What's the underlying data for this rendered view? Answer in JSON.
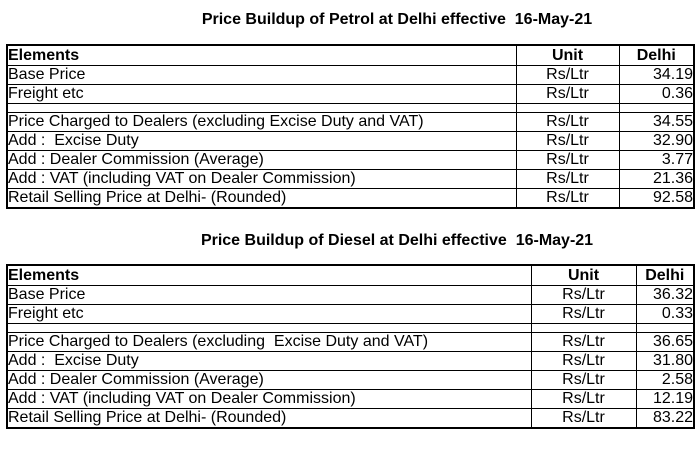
{
  "page": {
    "background_color": "#ffffff",
    "text_color": "#000000",
    "border_color": "#000000"
  },
  "tables": [
    {
      "title": "Price Buildup of Petrol at Delhi effective  16-May-21",
      "columns": [
        "Elements",
        "Unit",
        "Delhi"
      ],
      "rows": [
        {
          "element": "Base Price",
          "unit": "Rs/Ltr",
          "value": "34.19"
        },
        {
          "element": "Freight etc",
          "unit": "Rs/Ltr",
          "value": "0.36"
        },
        {
          "element": "Price Charged to Dealers (excluding Excise Duty and VAT)",
          "unit": "Rs/Ltr",
          "value": "34.55"
        },
        {
          "element": "Add :  Excise Duty",
          "unit": "Rs/Ltr",
          "value": "32.90"
        },
        {
          "element": "Add : Dealer Commission (Average)",
          "unit": "Rs/Ltr",
          "value": "3.77"
        },
        {
          "element": "Add : VAT (including VAT on Dealer Commission)",
          "unit": "Rs/Ltr",
          "value": "21.36"
        },
        {
          "element": "Retail Selling Price at Delhi- (Rounded)",
          "unit": "Rs/Ltr",
          "value": "92.58"
        }
      ]
    },
    {
      "title": "Price Buildup of Diesel at Delhi effective  16-May-21",
      "columns": [
        "Elements",
        "Unit",
        "Delhi"
      ],
      "rows": [
        {
          "element": "Base Price",
          "unit": "Rs/Ltr",
          "value": "36.32"
        },
        {
          "element": "Freight etc",
          "unit": "Rs/Ltr",
          "value": "0.33"
        },
        {
          "element": "Price Charged to Dealers (excluding  Excise Duty and VAT)",
          "unit": "Rs/Ltr",
          "value": "36.65"
        },
        {
          "element": "Add :  Excise Duty",
          "unit": "Rs/Ltr",
          "value": "31.80"
        },
        {
          "element": "Add : Dealer Commission (Average)",
          "unit": "Rs/Ltr",
          "value": "2.58"
        },
        {
          "element": "Add : VAT (including VAT on Dealer Commission)",
          "unit": "Rs/Ltr",
          "value": "12.19"
        },
        {
          "element": "Retail Selling Price at Delhi- (Rounded)",
          "unit": "Rs/Ltr",
          "value": "83.22"
        }
      ]
    }
  ],
  "chart_data": [
    {
      "type": "table",
      "title": "Price Buildup of Petrol at Delhi effective 16-May-21",
      "columns": [
        "Elements",
        "Unit",
        "Delhi"
      ],
      "rows": [
        [
          "Base Price",
          "Rs/Ltr",
          34.19
        ],
        [
          "Freight etc",
          "Rs/Ltr",
          0.36
        ],
        [
          "Price Charged to Dealers (excluding Excise Duty and VAT)",
          "Rs/Ltr",
          34.55
        ],
        [
          "Add : Excise Duty",
          "Rs/Ltr",
          32.9
        ],
        [
          "Add : Dealer Commission (Average)",
          "Rs/Ltr",
          3.77
        ],
        [
          "Add : VAT (including VAT on Dealer Commission)",
          "Rs/Ltr",
          21.36
        ],
        [
          "Retail Selling Price at Delhi- (Rounded)",
          "Rs/Ltr",
          92.58
        ]
      ]
    },
    {
      "type": "table",
      "title": "Price Buildup of Diesel at Delhi effective 16-May-21",
      "columns": [
        "Elements",
        "Unit",
        "Delhi"
      ],
      "rows": [
        [
          "Base Price",
          "Rs/Ltr",
          36.32
        ],
        [
          "Freight etc",
          "Rs/Ltr",
          0.33
        ],
        [
          "Price Charged to Dealers (excluding Excise Duty and VAT)",
          "Rs/Ltr",
          36.65
        ],
        [
          "Add : Excise Duty",
          "Rs/Ltr",
          31.8
        ],
        [
          "Add : Dealer Commission (Average)",
          "Rs/Ltr",
          2.58
        ],
        [
          "Add : VAT (including VAT on Dealer Commission)",
          "Rs/Ltr",
          12.19
        ],
        [
          "Retail Selling Price at Delhi- (Rounded)",
          "Rs/Ltr",
          83.22
        ]
      ]
    }
  ]
}
